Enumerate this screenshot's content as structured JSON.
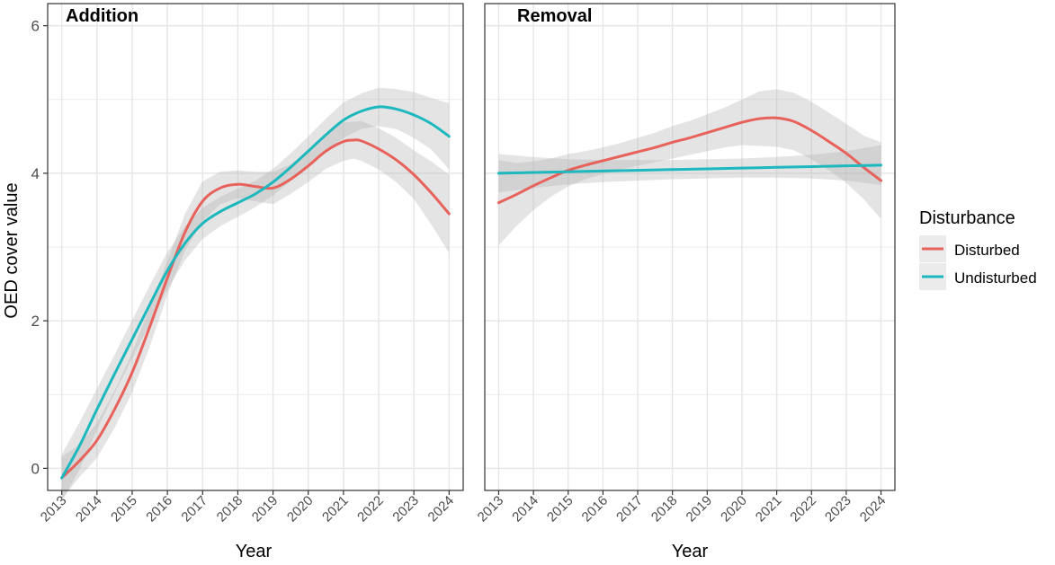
{
  "figure": {
    "ylabel": "OED cover value",
    "xlabel": "Year"
  },
  "legend": {
    "title": "Disturbance",
    "placement": "right",
    "entries": [
      {
        "label": "Disturbed",
        "color": "#E8625C"
      },
      {
        "label": "Undisturbed",
        "color": "#1CB8BD"
      }
    ]
  },
  "colors": {
    "ribbon": "#b3b3b3",
    "grid": "#e6e6e6",
    "panel_border": "#333333"
  },
  "chart_data": [
    {
      "type": "line",
      "title": "Addition",
      "xlabel": "Year",
      "ylabel": "OED cover value",
      "categories": [
        "2013",
        "2014",
        "2015",
        "2016",
        "2017",
        "2018",
        "2019",
        "2020",
        "2021",
        "2022",
        "2023",
        "2024"
      ],
      "xlim": [
        2012.6,
        2024.4
      ],
      "ylim": [
        -0.3,
        6.3
      ],
      "yticks": [
        0,
        2,
        4,
        6
      ],
      "grid": true,
      "series": [
        {
          "name": "Disturbed",
          "color": "#E8625C",
          "x": [
            2013,
            2013.5,
            2014,
            2014.5,
            2015,
            2015.5,
            2016,
            2016.5,
            2017,
            2017.5,
            2018,
            2018.5,
            2019,
            2019.5,
            2020,
            2020.5,
            2021,
            2021.3,
            2021.5,
            2022,
            2022.5,
            2023,
            2023.5,
            2024
          ],
          "values": [
            -0.13,
            0.1,
            0.38,
            0.8,
            1.3,
            1.92,
            2.58,
            3.2,
            3.62,
            3.8,
            3.85,
            3.82,
            3.8,
            3.92,
            4.1,
            4.3,
            4.43,
            4.45,
            4.44,
            4.33,
            4.18,
            3.98,
            3.73,
            3.45
          ],
          "ci_lower": [
            -0.42,
            -0.12,
            0.14,
            0.55,
            1.03,
            1.65,
            2.35,
            2.95,
            3.35,
            3.58,
            3.66,
            3.62,
            3.58,
            3.72,
            3.88,
            4.06,
            4.17,
            4.2,
            4.17,
            4.05,
            3.88,
            3.65,
            3.3,
            2.92
          ],
          "ci_upper": [
            0.16,
            0.32,
            0.62,
            1.05,
            1.57,
            2.19,
            2.81,
            3.45,
            3.89,
            4.02,
            4.04,
            4.02,
            4.02,
            4.12,
            4.32,
            4.54,
            4.69,
            4.7,
            4.71,
            4.61,
            4.48,
            4.31,
            4.16,
            3.98
          ]
        },
        {
          "name": "Undisturbed",
          "color": "#1CB8BD",
          "x": [
            2013,
            2013.5,
            2014,
            2014.5,
            2015,
            2015.5,
            2016,
            2016.5,
            2017,
            2017.5,
            2018,
            2018.5,
            2019,
            2019.5,
            2020,
            2020.5,
            2021,
            2021.5,
            2022,
            2022.5,
            2023,
            2023.5,
            2024
          ],
          "values": [
            -0.13,
            0.3,
            0.8,
            1.28,
            1.75,
            2.22,
            2.68,
            3.05,
            3.32,
            3.48,
            3.6,
            3.72,
            3.88,
            4.08,
            4.3,
            4.52,
            4.72,
            4.84,
            4.9,
            4.87,
            4.79,
            4.67,
            4.5
          ],
          "ci_lower": [
            -0.45,
            -0.02,
            0.52,
            1.02,
            1.49,
            1.96,
            2.43,
            2.82,
            3.11,
            3.28,
            3.41,
            3.54,
            3.7,
            3.89,
            4.1,
            4.3,
            4.48,
            4.6,
            4.64,
            4.6,
            4.48,
            4.32,
            4.05
          ],
          "ci_upper": [
            0.19,
            0.62,
            1.08,
            1.54,
            2.01,
            2.48,
            2.93,
            3.28,
            3.53,
            3.68,
            3.79,
            3.9,
            4.06,
            4.27,
            4.5,
            4.74,
            4.96,
            5.08,
            5.16,
            5.14,
            5.1,
            5.02,
            4.95
          ]
        }
      ]
    },
    {
      "type": "line",
      "title": "Removal",
      "xlabel": "Year",
      "ylabel": "",
      "categories": [
        "2013",
        "2014",
        "2015",
        "2016",
        "2017",
        "2018",
        "2019",
        "2020",
        "2021",
        "2022",
        "2023",
        "2024"
      ],
      "xlim": [
        2012.6,
        2024.4
      ],
      "ylim": [
        -0.3,
        6.3
      ],
      "yticks": [
        0,
        2,
        4,
        6
      ],
      "grid": true,
      "series": [
        {
          "name": "Disturbed",
          "color": "#E8625C",
          "x": [
            2013,
            2013.5,
            2014,
            2014.5,
            2015,
            2015.5,
            2016,
            2016.5,
            2017,
            2017.5,
            2018,
            2018.5,
            2019,
            2019.5,
            2020,
            2020.5,
            2021,
            2021.5,
            2022,
            2022.5,
            2023,
            2023.5,
            2024
          ],
          "values": [
            3.6,
            3.71,
            3.83,
            3.94,
            4.04,
            4.11,
            4.17,
            4.23,
            4.29,
            4.35,
            4.42,
            4.48,
            4.55,
            4.62,
            4.69,
            4.74,
            4.75,
            4.7,
            4.58,
            4.43,
            4.27,
            4.08,
            3.9
          ],
          "ci_lower": [
            3.02,
            3.28,
            3.5,
            3.68,
            3.82,
            3.92,
            3.99,
            4.05,
            4.1,
            4.15,
            4.2,
            4.25,
            4.3,
            4.35,
            4.38,
            4.37,
            4.36,
            4.31,
            4.19,
            4.04,
            3.87,
            3.65,
            3.38
          ],
          "ci_upper": [
            4.18,
            4.14,
            4.16,
            4.2,
            4.26,
            4.3,
            4.35,
            4.41,
            4.48,
            4.55,
            4.64,
            4.71,
            4.8,
            4.89,
            5.0,
            5.11,
            5.14,
            5.09,
            4.97,
            4.82,
            4.67,
            4.51,
            4.42
          ]
        },
        {
          "name": "Undisturbed",
          "color": "#1CB8BD",
          "x": [
            2013,
            2014,
            2015,
            2016,
            2017,
            2018,
            2019,
            2020,
            2021,
            2022,
            2023,
            2024
          ],
          "values": [
            4.0,
            4.01,
            4.02,
            4.03,
            4.04,
            4.05,
            4.06,
            4.07,
            4.08,
            4.09,
            4.1,
            4.11
          ],
          "ci_lower": [
            3.74,
            3.8,
            3.85,
            3.88,
            3.9,
            3.92,
            3.93,
            3.94,
            3.94,
            3.93,
            3.9,
            3.84
          ],
          "ci_upper": [
            4.26,
            4.22,
            4.19,
            4.18,
            4.18,
            4.18,
            4.19,
            4.2,
            4.22,
            4.25,
            4.3,
            4.38
          ]
        }
      ]
    }
  ]
}
